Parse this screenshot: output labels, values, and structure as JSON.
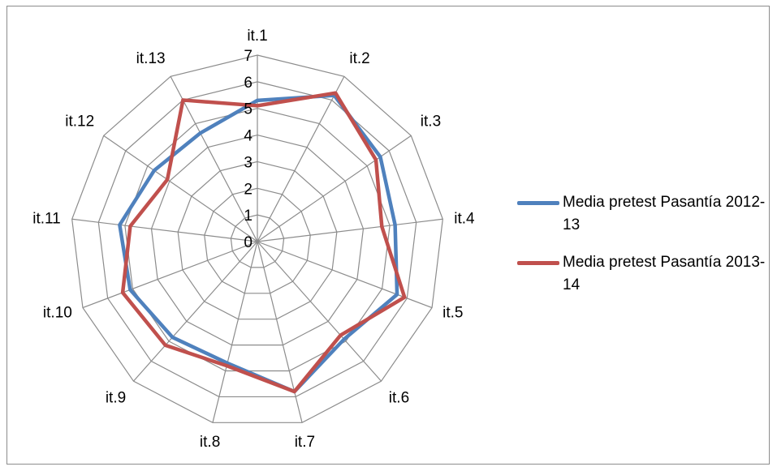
{
  "chart_data": {
    "type": "radar",
    "title": "",
    "categories": [
      "it.1",
      "it.2",
      "it.3",
      "it.4",
      "it.5",
      "it.6",
      "it.7",
      "it.8",
      "it.9",
      "it.10",
      "it.11",
      "it.12",
      "it.13"
    ],
    "rlim": [
      0,
      7
    ],
    "ticks": [
      "0",
      "1",
      "2",
      "3",
      "4",
      "5",
      "6",
      "7"
    ],
    "grid": true,
    "legend_position": "right",
    "series": [
      {
        "name": "Media pretest Pasantía 2012-13",
        "color": "#4f81bd",
        "values": [
          5.3,
          6.2,
          5.6,
          5.2,
          5.6,
          4.9,
          5.8,
          4.7,
          4.8,
          5.1,
          5.2,
          4.7,
          4.6
        ]
      },
      {
        "name": "Media pretest Pasantía 2013-14",
        "color": "#c0504d",
        "values": [
          5.1,
          6.3,
          5.4,
          4.7,
          5.9,
          4.7,
          5.8,
          4.8,
          5.2,
          5.4,
          4.8,
          4.1,
          6.0
        ]
      }
    ]
  }
}
